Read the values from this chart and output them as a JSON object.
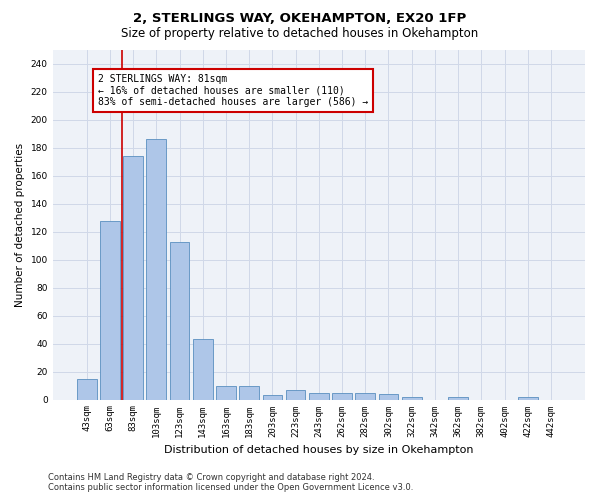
{
  "title1": "2, STERLINGS WAY, OKEHAMPTON, EX20 1FP",
  "title2": "Size of property relative to detached houses in Okehampton",
  "xlabel": "Distribution of detached houses by size in Okehampton",
  "ylabel": "Number of detached properties",
  "categories": [
    "43sqm",
    "63sqm",
    "83sqm",
    "103sqm",
    "123sqm",
    "143sqm",
    "163sqm",
    "183sqm",
    "203sqm",
    "223sqm",
    "243sqm",
    "262sqm",
    "282sqm",
    "302sqm",
    "322sqm",
    "342sqm",
    "362sqm",
    "382sqm",
    "402sqm",
    "422sqm",
    "442sqm"
  ],
  "values": [
    15,
    128,
    174,
    186,
    113,
    43,
    10,
    10,
    3,
    7,
    5,
    5,
    5,
    4,
    2,
    0,
    2,
    0,
    0,
    2,
    0
  ],
  "bar_color": "#aec6e8",
  "bar_edge_color": "#5a8fc0",
  "vline_color": "#cc0000",
  "annotation_text": "2 STERLINGS WAY: 81sqm\n← 16% of detached houses are smaller (110)\n83% of semi-detached houses are larger (586) →",
  "annotation_box_color": "#ffffff",
  "annotation_box_edge_color": "#cc0000",
  "ylim": [
    0,
    250
  ],
  "yticks": [
    0,
    20,
    40,
    60,
    80,
    100,
    120,
    140,
    160,
    180,
    200,
    220,
    240
  ],
  "grid_color": "#d0d8e8",
  "background_color": "#eef2f8",
  "footer_text": "Contains HM Land Registry data © Crown copyright and database right 2024.\nContains public sector information licensed under the Open Government Licence v3.0.",
  "title1_fontsize": 9.5,
  "title2_fontsize": 8.5,
  "xlabel_fontsize": 8,
  "ylabel_fontsize": 7.5,
  "tick_fontsize": 6.5,
  "annotation_fontsize": 7,
  "footer_fontsize": 6
}
